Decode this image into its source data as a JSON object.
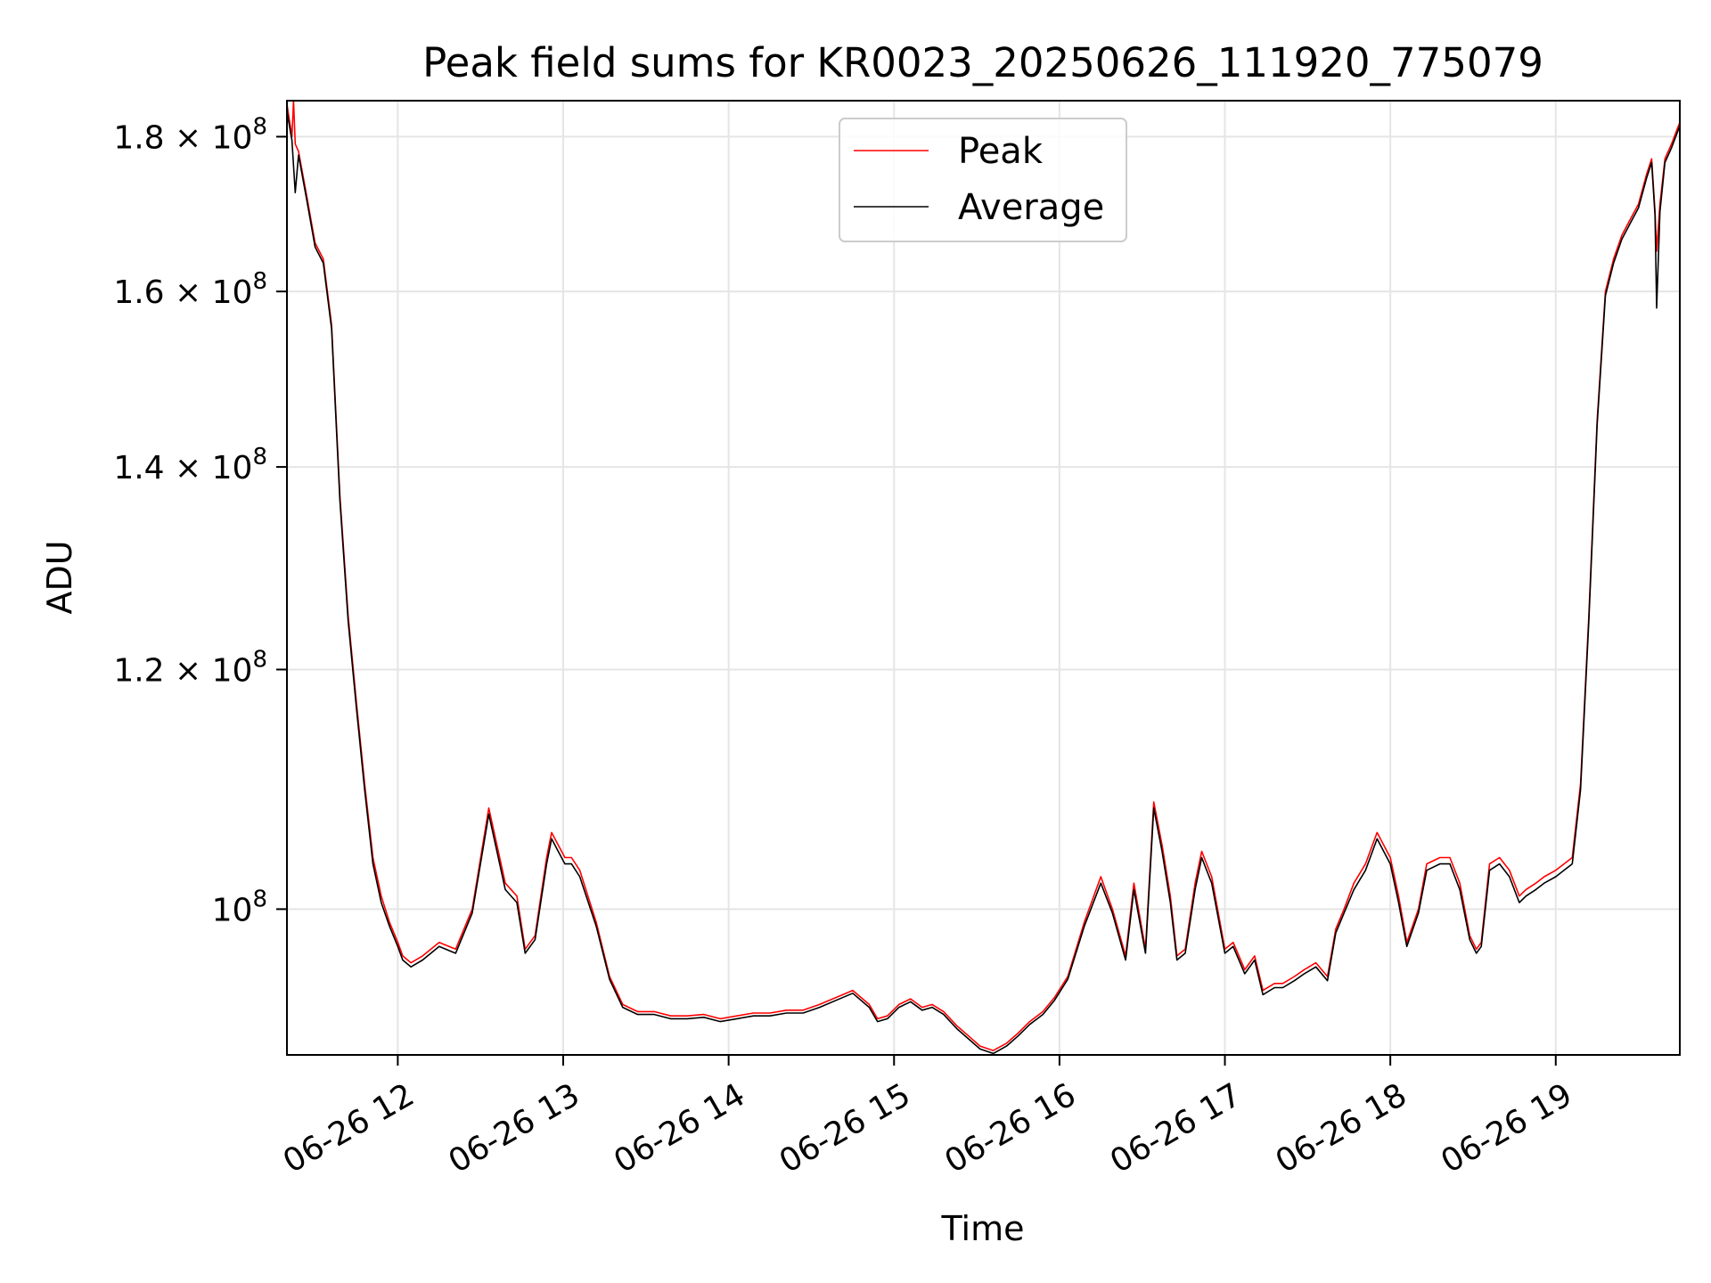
{
  "chart_data": {
    "type": "line",
    "title": "Peak field sums for KR0023_20250626_111920_775079",
    "xlabel": "Time",
    "ylabel": "ADU",
    "x_unit": "hours (06-26)",
    "xlim": [
      11.33,
      19.75
    ],
    "ylim": [
      89500000.0,
      185000000.0
    ],
    "y_scale": "log",
    "grid": true,
    "legend_position": "upper center",
    "x_ticks": [
      {
        "value": 12,
        "label": "06-26 12"
      },
      {
        "value": 13,
        "label": "06-26 13"
      },
      {
        "value": 14,
        "label": "06-26 14"
      },
      {
        "value": 15,
        "label": "06-26 15"
      },
      {
        "value": 16,
        "label": "06-26 16"
      },
      {
        "value": 17,
        "label": "06-26 17"
      },
      {
        "value": 18,
        "label": "06-26 18"
      },
      {
        "value": 19,
        "label": "06-26 19"
      }
    ],
    "y_ticks": [
      {
        "value": 100000000,
        "base": "10",
        "exp": "8",
        "mantissa": ""
      },
      {
        "value": 120000000,
        "base": "1.2 × 10",
        "exp": "8",
        "mantissa": "1.2"
      },
      {
        "value": 140000000,
        "base": "1.4 × 10",
        "exp": "8",
        "mantissa": "1.4"
      },
      {
        "value": 160000000,
        "base": "1.6 × 10",
        "exp": "8",
        "mantissa": "1.6"
      },
      {
        "value": 180000000,
        "base": "1.8 × 10",
        "exp": "8",
        "mantissa": "1.8"
      }
    ],
    "series": [
      {
        "name": "Peak",
        "color": "#ff0000",
        "x": [
          11.33,
          11.36,
          11.37,
          11.38,
          11.4,
          11.45,
          11.5,
          11.55,
          11.6,
          11.65,
          11.7,
          11.75,
          11.8,
          11.85,
          11.9,
          11.95,
          12.0,
          12.03,
          12.08,
          12.15,
          12.25,
          12.35,
          12.45,
          12.55,
          12.65,
          12.72,
          12.77,
          12.83,
          12.9,
          12.93,
          12.97,
          13.01,
          13.05,
          13.1,
          13.2,
          13.28,
          13.36,
          13.45,
          13.55,
          13.65,
          13.75,
          13.85,
          13.95,
          14.05,
          14.15,
          14.25,
          14.35,
          14.45,
          14.55,
          14.65,
          14.75,
          14.85,
          14.9,
          14.96,
          15.03,
          15.1,
          15.17,
          15.23,
          15.3,
          15.38,
          15.45,
          15.52,
          15.6,
          15.68,
          15.75,
          15.82,
          15.9,
          15.97,
          16.05,
          16.15,
          16.25,
          16.32,
          16.4,
          16.45,
          16.52,
          16.57,
          16.62,
          16.67,
          16.71,
          16.76,
          16.82,
          16.86,
          16.92,
          17.0,
          17.05,
          17.12,
          17.18,
          17.23,
          17.3,
          17.35,
          17.42,
          17.48,
          17.55,
          17.62,
          17.67,
          17.72,
          17.78,
          17.85,
          17.92,
          18.0,
          18.05,
          18.1,
          18.17,
          18.22,
          18.3,
          18.36,
          18.42,
          18.48,
          18.52,
          18.55,
          18.6,
          18.66,
          18.72,
          18.78,
          18.82,
          18.88,
          18.93,
          19.0,
          19.05,
          19.1,
          19.15,
          19.2,
          19.25,
          19.3,
          19.35,
          19.4,
          19.45,
          19.5,
          19.55,
          19.58,
          19.6,
          19.61,
          19.63,
          19.66,
          19.7,
          19.75
        ],
        "y": [
          184500000,
          180000000,
          185000000,
          179000000,
          178000000,
          172000000,
          166000000,
          164000000,
          156000000,
          137000000,
          125000000,
          117000000,
          110000000,
          104000000,
          101000000,
          99000000,
          97500000,
          96500000,
          96000000,
          96500000,
          97500000,
          97000000,
          100000000,
          108000000,
          102000000,
          101000000,
          97000000,
          98000000,
          104000000,
          106000000,
          105000000,
          104000000,
          104000000,
          103000000,
          99000000,
          95000000,
          93000000,
          92500000,
          92500000,
          92200000,
          92200000,
          92300000,
          92000000,
          92200000,
          92400000,
          92400000,
          92600000,
          92600000,
          93000000,
          93500000,
          94000000,
          93000000,
          92000000,
          92200000,
          93000000,
          93400000,
          92800000,
          93000000,
          92500000,
          91500000,
          90800000,
          90100000,
          89800000,
          90300000,
          91000000,
          91800000,
          92500000,
          93500000,
          95000000,
          99000000,
          102500000,
          100000000,
          96500000,
          102000000,
          97000000,
          108500000,
          105000000,
          101000000,
          96500000,
          97000000,
          102000000,
          104500000,
          102500000,
          97000000,
          97500000,
          95500000,
          96500000,
          94000000,
          94500000,
          94500000,
          95000000,
          95500000,
          96000000,
          95000000,
          98500000,
          100000000,
          102000000,
          103500000,
          106000000,
          104000000,
          101000000,
          97500000,
          100000000,
          103500000,
          104000000,
          104000000,
          102000000,
          98000000,
          97000000,
          97500000,
          103500000,
          104000000,
          103000000,
          101000000,
          101500000,
          102000000,
          102500000,
          103000000,
          103500000,
          104000000,
          110000000,
          125000000,
          145000000,
          160000000,
          164000000,
          167000000,
          169000000,
          171000000,
          175000000,
          177000000,
          170000000,
          165000000,
          171000000,
          177000000,
          179000000,
          182000000
        ]
      },
      {
        "name": "Average",
        "color": "#000000",
        "x": [
          11.33,
          11.36,
          11.38,
          11.4,
          11.45,
          11.5,
          11.55,
          11.6,
          11.65,
          11.7,
          11.75,
          11.8,
          11.85,
          11.9,
          11.95,
          12.0,
          12.03,
          12.08,
          12.15,
          12.25,
          12.35,
          12.45,
          12.55,
          12.65,
          12.72,
          12.77,
          12.83,
          12.9,
          12.93,
          12.97,
          13.01,
          13.05,
          13.1,
          13.2,
          13.28,
          13.36,
          13.45,
          13.55,
          13.65,
          13.75,
          13.85,
          13.95,
          14.05,
          14.15,
          14.25,
          14.35,
          14.45,
          14.55,
          14.65,
          14.75,
          14.85,
          14.9,
          14.96,
          15.03,
          15.1,
          15.17,
          15.23,
          15.3,
          15.38,
          15.45,
          15.52,
          15.6,
          15.68,
          15.75,
          15.82,
          15.9,
          15.97,
          16.05,
          16.15,
          16.25,
          16.32,
          16.4,
          16.45,
          16.52,
          16.57,
          16.62,
          16.67,
          16.71,
          16.76,
          16.82,
          16.86,
          16.92,
          17.0,
          17.05,
          17.12,
          17.18,
          17.23,
          17.3,
          17.35,
          17.42,
          17.48,
          17.55,
          17.62,
          17.67,
          17.72,
          17.78,
          17.85,
          17.92,
          18.0,
          18.05,
          18.1,
          18.17,
          18.22,
          18.3,
          18.36,
          18.42,
          18.48,
          18.52,
          18.55,
          18.6,
          18.66,
          18.72,
          18.78,
          18.82,
          18.88,
          18.93,
          19.0,
          19.05,
          19.1,
          19.15,
          19.2,
          19.25,
          19.3,
          19.35,
          19.4,
          19.45,
          19.5,
          19.55,
          19.58,
          19.6,
          19.61,
          19.63,
          19.66,
          19.7,
          19.75
        ],
        "y": [
          183500000,
          179500000,
          172500000,
          177500000,
          171500000,
          165500000,
          163500000,
          155500000,
          136500000,
          124500000,
          116500000,
          109500000,
          103500000,
          100500000,
          98700000,
          97200000,
          96200000,
          95700000,
          96200000,
          97200000,
          96700000,
          99700000,
          107500000,
          101500000,
          100500000,
          96700000,
          97700000,
          103500000,
          105500000,
          104500000,
          103500000,
          103500000,
          102500000,
          98700000,
          94800000,
          92800000,
          92300000,
          92300000,
          92000000,
          92000000,
          92100000,
          91800000,
          92000000,
          92200000,
          92200000,
          92400000,
          92400000,
          92800000,
          93300000,
          93800000,
          92800000,
          91800000,
          92000000,
          92800000,
          93200000,
          92600000,
          92800000,
          92300000,
          91300000,
          90600000,
          89900000,
          89600000,
          90100000,
          90800000,
          91600000,
          92300000,
          93300000,
          94800000,
          98700000,
          102000000,
          99700000,
          96200000,
          101500000,
          96700000,
          108000000,
          104500000,
          100500000,
          96200000,
          96700000,
          101500000,
          104000000,
          102000000,
          96700000,
          97200000,
          95200000,
          96200000,
          93700000,
          94200000,
          94200000,
          94700000,
          95200000,
          95700000,
          94700000,
          98200000,
          99700000,
          101500000,
          103000000,
          105500000,
          103500000,
          100500000,
          97200000,
          99700000,
          103000000,
          103500000,
          103500000,
          101500000,
          97700000,
          96700000,
          97200000,
          103000000,
          103500000,
          102500000,
          100500000,
          101000000,
          101500000,
          102000000,
          102500000,
          103000000,
          103500000,
          109500000,
          124500000,
          144500000,
          159500000,
          163500000,
          166500000,
          168500000,
          170500000,
          174500000,
          176500000,
          169500000,
          158000000,
          170000000,
          176500000,
          178500000,
          181500000
        ]
      }
    ]
  }
}
